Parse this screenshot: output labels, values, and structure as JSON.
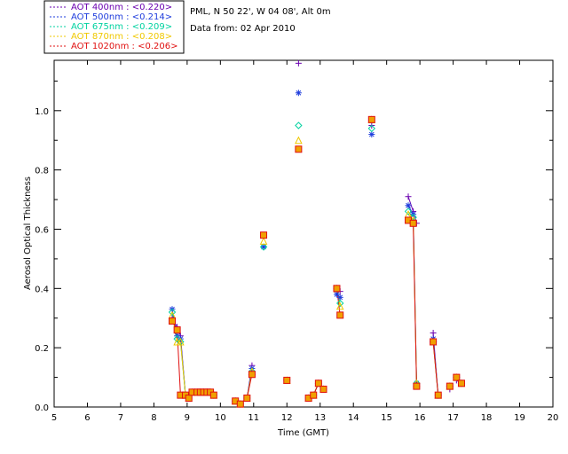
{
  "chart_data": {
    "type": "scatter",
    "xlabel": "Time (GMT)",
    "ylabel": "Aerosol Optical Thickness",
    "xlim": [
      5,
      20
    ],
    "ylim": [
      0.0,
      1.17
    ],
    "xticks": [
      "5",
      "6",
      "7",
      "8",
      "9",
      "10",
      "11",
      "12",
      "13",
      "14",
      "15",
      "16",
      "17",
      "18",
      "19",
      "20"
    ],
    "yticks": [
      "0.0",
      "0.2",
      "0.4",
      "0.6",
      "0.8",
      "1.0"
    ],
    "info": {
      "site": "PML, N 50 22', W 04 08', Alt 0m",
      "date": "Data from: 02 Apr 2010"
    },
    "legend_position": "top-left, outside plot",
    "x": [
      8.55,
      8.7,
      8.8,
      8.95,
      9.05,
      9.15,
      9.3,
      9.4,
      9.5,
      9.6,
      9.7,
      9.8,
      10.45,
      10.6,
      10.8,
      10.95,
      11.3,
      12.0,
      12.35,
      12.65,
      12.8,
      12.95,
      13.1,
      13.5,
      13.6,
      14.55,
      15.65,
      15.8,
      15.9,
      16.4,
      16.55,
      16.9,
      17.1,
      17.25
    ],
    "x_note_shared": "all series share x",
    "series": [
      {
        "name": "AOT  400nm : <0.220>",
        "color": "#6a00b0",
        "marker": "plus",
        "values": [
          0.3,
          0.27,
          0.24,
          0.04,
          0.03,
          0.05,
          0.05,
          0.05,
          0.05,
          0.05,
          0.05,
          0.04,
          0.02,
          0.01,
          0.03,
          0.14,
          0.58,
          0.09,
          1.16,
          0.03,
          0.04,
          0.08,
          0.06,
          0.39,
          0.39,
          0.95,
          0.71,
          0.66,
          0.62,
          0.25,
          0.04,
          0.06,
          0.09,
          0.08
        ]
      },
      {
        "name": "AOT  500nm : <0.214>",
        "color": "#1e3cdc",
        "marker": "asterisk",
        "values": [
          0.33,
          0.24,
          0.23,
          0.04,
          0.03,
          0.05,
          0.05,
          0.05,
          0.05,
          0.05,
          0.05,
          0.04,
          0.02,
          0.01,
          0.03,
          0.13,
          0.54,
          0.09,
          1.06,
          0.03,
          0.04,
          0.08,
          0.06,
          0.38,
          0.37,
          0.92,
          0.68,
          0.65,
          0.08,
          0.23,
          0.04,
          0.07,
          0.1,
          0.08
        ]
      },
      {
        "name": "AOT  675nm : <0.209>",
        "color": "#00d2a0",
        "marker": "diamond",
        "values": [
          0.32,
          0.23,
          0.22,
          0.04,
          0.03,
          0.05,
          0.05,
          0.05,
          0.05,
          0.05,
          0.05,
          0.04,
          0.02,
          0.01,
          0.03,
          0.12,
          0.54,
          0.09,
          0.95,
          0.03,
          0.04,
          0.08,
          0.06,
          0.4,
          0.35,
          0.94,
          0.66,
          0.64,
          0.08,
          0.22,
          0.04,
          0.07,
          0.1,
          0.08
        ]
      },
      {
        "name": "AOT  870nm : <0.208>",
        "color": "#f0c800",
        "marker": "triangle",
        "values": [
          0.31,
          0.22,
          0.22,
          0.04,
          0.03,
          0.05,
          0.05,
          0.05,
          0.05,
          0.05,
          0.05,
          0.04,
          0.02,
          0.01,
          0.03,
          0.12,
          0.56,
          0.09,
          0.9,
          0.03,
          0.04,
          0.08,
          0.06,
          0.4,
          0.34,
          0.97,
          0.65,
          0.63,
          0.08,
          0.22,
          0.04,
          0.07,
          0.1,
          0.08
        ]
      },
      {
        "name": "AOT 1020nm : <0.206>",
        "color": "#e01010",
        "marker": "square",
        "values": [
          0.29,
          0.26,
          0.04,
          0.04,
          0.03,
          0.05,
          0.05,
          0.05,
          0.05,
          0.05,
          0.05,
          0.04,
          0.02,
          0.01,
          0.03,
          0.11,
          0.58,
          0.09,
          0.87,
          0.03,
          0.04,
          0.08,
          0.06,
          0.4,
          0.31,
          0.97,
          0.63,
          0.62,
          0.07,
          0.22,
          0.04,
          0.07,
          0.1,
          0.08
        ]
      }
    ]
  }
}
